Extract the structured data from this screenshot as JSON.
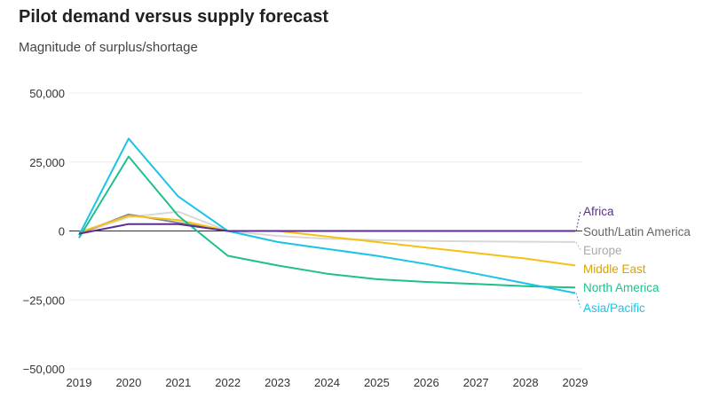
{
  "title": "Pilot demand versus supply forecast",
  "subtitle": "Magnitude of surplus/shortage",
  "chart_data": {
    "type": "line",
    "x": [
      "2019",
      "2020",
      "2021",
      "2022",
      "2023",
      "2024",
      "2025",
      "2026",
      "2027",
      "2028",
      "2029"
    ],
    "ylim": [
      -50000,
      50000
    ],
    "yticks": [
      50000,
      25000,
      0,
      -25000,
      -50000
    ],
    "ytick_labels": [
      "50,000",
      "25,000",
      "0",
      "−25,000",
      "−50,000"
    ],
    "grid": true,
    "series": [
      {
        "name": "Africa",
        "color": "#5b2d90",
        "values": [
          -1000,
          2500,
          2500,
          0,
          0,
          0,
          0,
          0,
          0,
          0,
          0
        ]
      },
      {
        "name": "South/Latin America",
        "color": "#888888",
        "values": [
          -1000,
          6000,
          3000,
          0,
          0,
          0,
          0,
          0,
          0,
          0,
          0
        ]
      },
      {
        "name": "Europe",
        "color": "#d8d8d8",
        "values": [
          -1000,
          5000,
          7000,
          0,
          -1800,
          -2800,
          -3300,
          -3600,
          -3800,
          -3900,
          -4000
        ]
      },
      {
        "name": "Middle East",
        "color": "#f6c015",
        "values": [
          -500,
          5500,
          4000,
          0,
          0,
          -2000,
          -4000,
          -6000,
          -8000,
          -10000,
          -12500
        ]
      },
      {
        "name": "North America",
        "color": "#1fbf8f",
        "values": [
          -2500,
          27000,
          5500,
          -9000,
          -12500,
          -15500,
          -17500,
          -18500,
          -19200,
          -20000,
          -20500
        ]
      },
      {
        "name": "Asia/Pacific",
        "color": "#1ac4e6",
        "values": [
          -1500,
          33500,
          12500,
          0,
          -4000,
          -6500,
          -9000,
          -12000,
          -15500,
          -19000,
          -22500
        ]
      }
    ]
  }
}
